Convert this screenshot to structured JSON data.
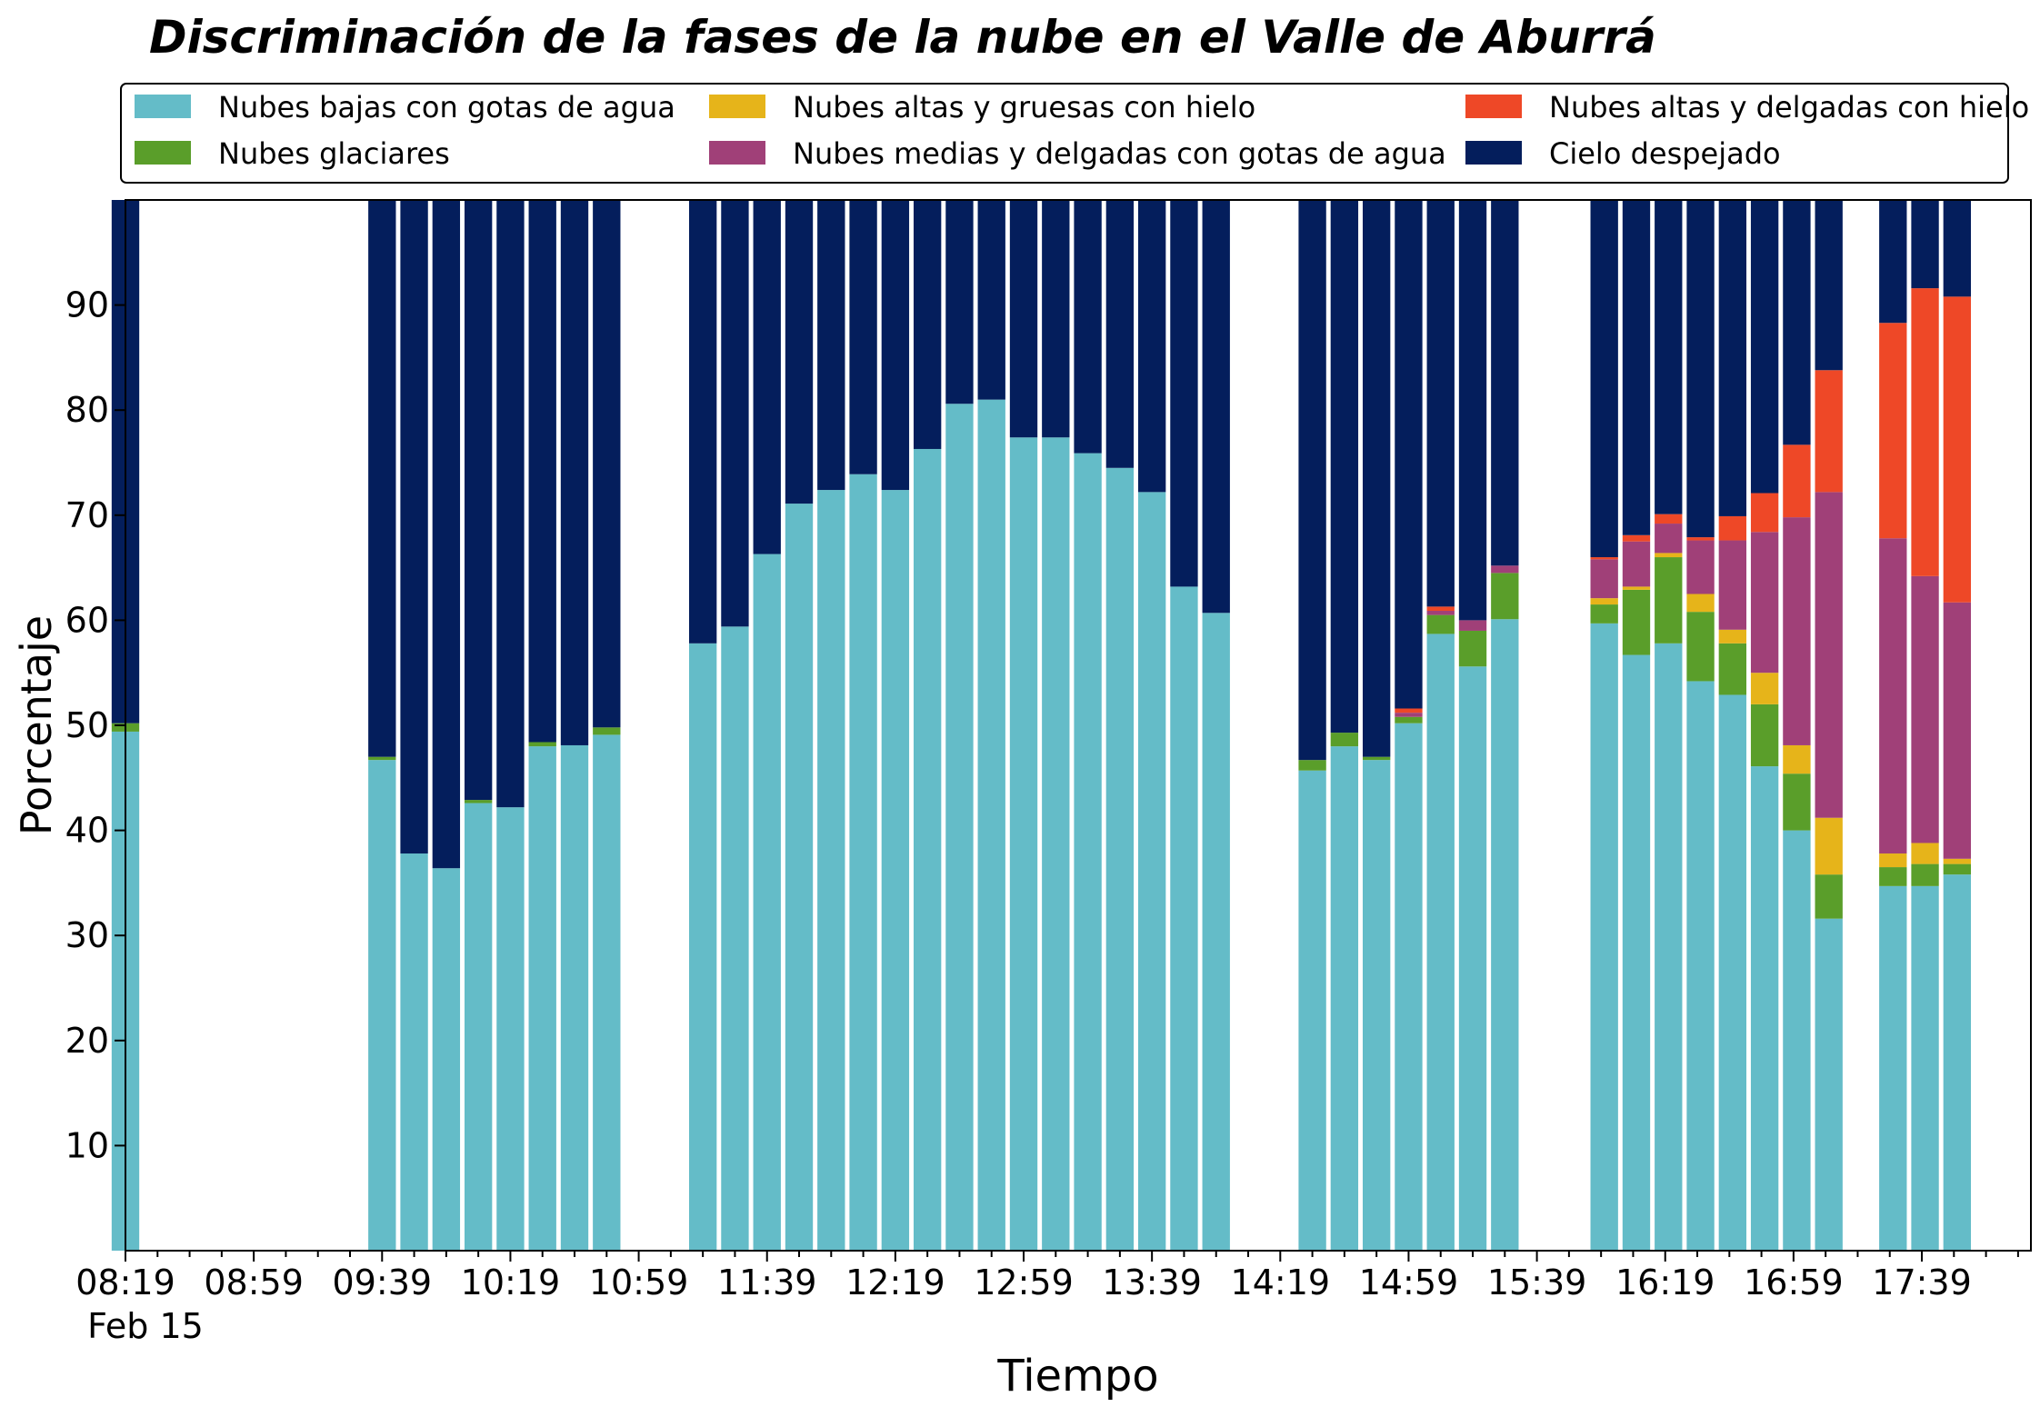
{
  "chart_data": {
    "type": "bar",
    "stacked": true,
    "title": "Discriminación de la fases de la nube en el Valle de Aburrá",
    "xlabel": "Tiempo",
    "ylabel": "Porcentaje",
    "ylim": [
      0,
      100
    ],
    "yticks": [
      10,
      20,
      30,
      40,
      50,
      60,
      70,
      80,
      90
    ],
    "date_label": "Feb 15",
    "grid": false,
    "legend_position": "top",
    "x_axis": {
      "start_minutes": 499,
      "end_minutes": 1093,
      "tick_step_minutes": 10,
      "major_ticks": [
        "08:19",
        "08:59",
        "09:39",
        "10:19",
        "10:59",
        "11:39",
        "12:19",
        "12:59",
        "13:39",
        "14:19",
        "14:59",
        "15:39",
        "16:19",
        "16:59",
        "17:39"
      ]
    },
    "bar_width_minutes": 8.6,
    "categories": [
      "08:19",
      "09:39",
      "09:49",
      "09:59",
      "10:09",
      "10:19",
      "10:29",
      "10:39",
      "10:49",
      "11:19",
      "11:29",
      "11:39",
      "11:49",
      "11:59",
      "12:09",
      "12:19",
      "12:29",
      "12:39",
      "12:49",
      "12:59",
      "13:09",
      "13:19",
      "13:29",
      "13:39",
      "13:49",
      "13:59",
      "14:29",
      "14:39",
      "14:49",
      "14:59",
      "15:09",
      "15:19",
      "15:29",
      "16:00",
      "16:10",
      "16:20",
      "16:30",
      "16:40",
      "16:50",
      "17:00",
      "17:10",
      "17:30",
      "17:40",
      "17:50"
    ],
    "series": [
      {
        "name": "Nubes bajas con gotas de agua",
        "color": "#64bcc8",
        "values": [
          49.4,
          46.7,
          37.8,
          36.4,
          42.6,
          42.2,
          48.0,
          48.1,
          49.1,
          57.8,
          59.4,
          66.3,
          71.1,
          72.4,
          73.9,
          72.4,
          76.3,
          80.6,
          81.0,
          77.4,
          77.4,
          75.9,
          74.5,
          72.2,
          63.2,
          60.7,
          45.7,
          48.0,
          46.7,
          50.2,
          58.7,
          55.6,
          60.1,
          59.7,
          56.7,
          57.8,
          54.2,
          52.9,
          46.1,
          40.0,
          31.6,
          34.7,
          34.7,
          35.8
        ]
      },
      {
        "name": "Nubes glaciares",
        "color": "#5a9e2a",
        "values": [
          0.8,
          0.3,
          0,
          0,
          0.3,
          0,
          0.4,
          0,
          0.7,
          0,
          0,
          0,
          0,
          0,
          0,
          0,
          0,
          0,
          0,
          0,
          0,
          0,
          0,
          0,
          0,
          0,
          1.0,
          1.3,
          0.3,
          0.6,
          1.8,
          3.4,
          4.4,
          1.8,
          6.2,
          8.2,
          6.6,
          4.9,
          5.9,
          5.4,
          4.2,
          1.8,
          2.1,
          1.0
        ]
      },
      {
        "name": "Nubes altas y gruesas con hielo",
        "color": "#e6b41a",
        "values": [
          0,
          0,
          0,
          0,
          0,
          0,
          0,
          0,
          0,
          0,
          0,
          0,
          0,
          0,
          0,
          0,
          0,
          0,
          0,
          0,
          0,
          0,
          0,
          0,
          0,
          0,
          0,
          0,
          0,
          0,
          0,
          0,
          0,
          0.6,
          0.3,
          0.4,
          1.7,
          1.3,
          3.0,
          2.7,
          5.4,
          1.3,
          2.0,
          0.5
        ]
      },
      {
        "name": "Nubes medias y delgadas con gotas de agua",
        "color": "#a04078",
        "values": [
          0,
          0,
          0,
          0,
          0,
          0,
          0,
          0,
          0,
          0,
          0,
          0,
          0,
          0,
          0,
          0,
          0,
          0,
          0,
          0,
          0,
          0,
          0,
          0,
          0,
          0,
          0,
          0,
          0,
          0.4,
          0.4,
          1.0,
          0.7,
          3.7,
          4.3,
          2.8,
          5.1,
          8.5,
          13.4,
          21.7,
          31.0,
          30.0,
          25.4,
          24.4
        ]
      },
      {
        "name": "Nubes altas y delgadas con hielo",
        "color": "#ee4827",
        "values": [
          0,
          0,
          0,
          0,
          0,
          0,
          0,
          0,
          0,
          0,
          0,
          0,
          0,
          0,
          0,
          0,
          0,
          0,
          0,
          0,
          0,
          0,
          0,
          0,
          0,
          0,
          0,
          0,
          0,
          0.4,
          0.4,
          0,
          0,
          0.2,
          0.6,
          0.9,
          0.3,
          2.3,
          3.7,
          6.9,
          11.6,
          20.5,
          27.4,
          29.1
        ]
      },
      {
        "name": "Cielo despejado",
        "color": "#041e5c",
        "values": [
          49.8,
          53.0,
          62.2,
          63.6,
          57.1,
          57.8,
          51.6,
          51.9,
          50.2,
          42.2,
          40.6,
          33.7,
          28.9,
          27.6,
          26.1,
          27.6,
          23.7,
          19.4,
          19.0,
          22.6,
          22.6,
          24.1,
          25.5,
          27.8,
          36.8,
          39.3,
          53.3,
          50.7,
          53.0,
          48.4,
          38.7,
          40.0,
          34.8,
          34.0,
          31.9,
          29.9,
          32.1,
          30.1,
          27.9,
          23.3,
          16.2,
          11.7,
          8.4,
          9.2
        ]
      }
    ]
  }
}
